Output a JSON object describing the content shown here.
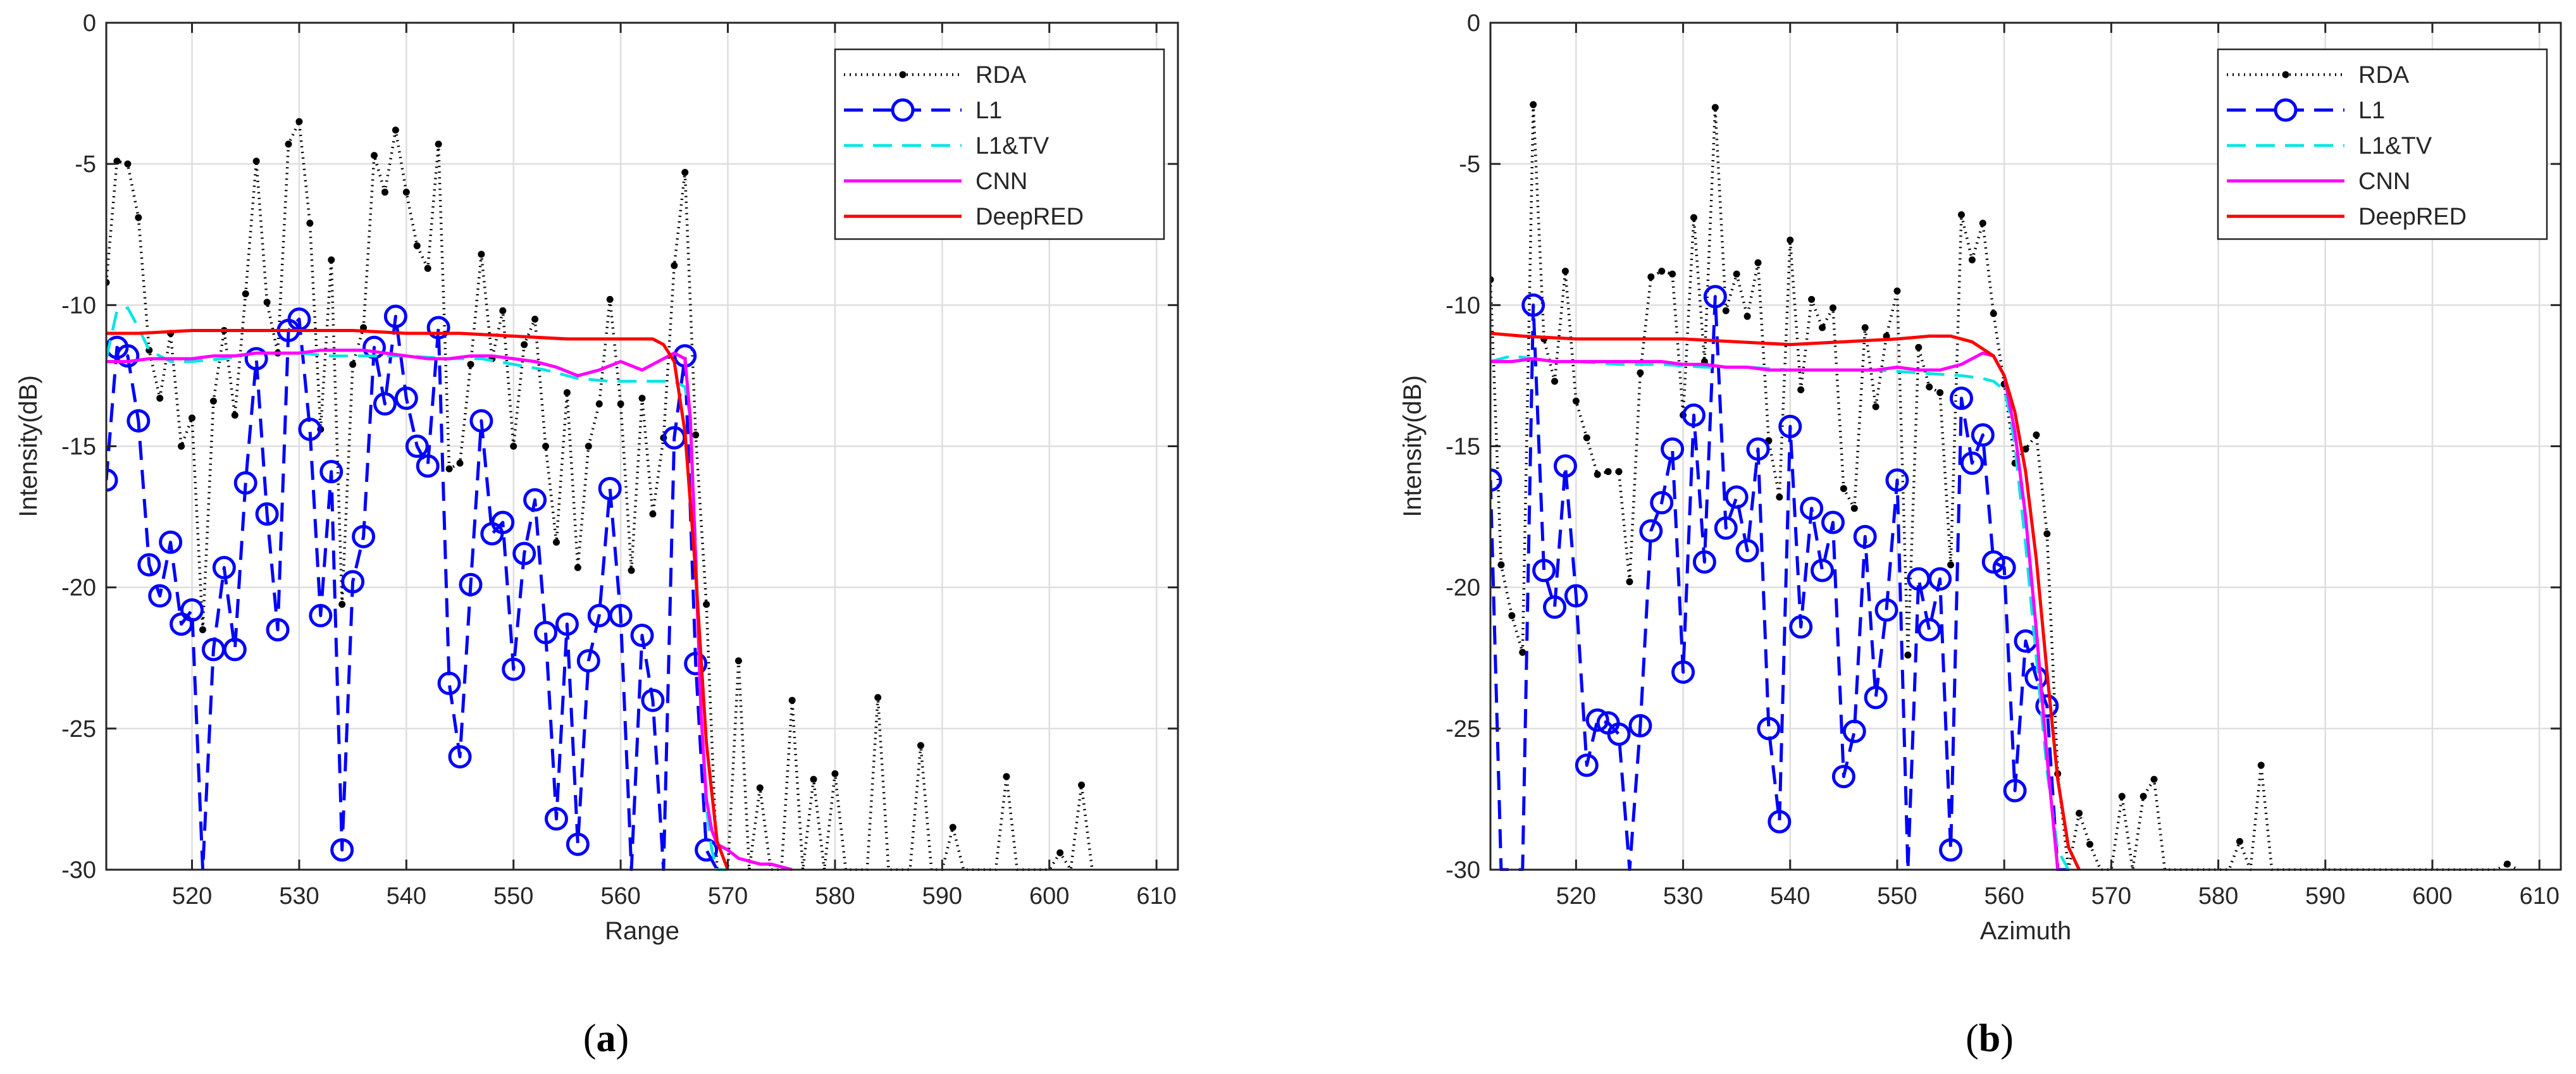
{
  "colors": {
    "RDA": "#000000",
    "L1": "#0000ff",
    "L1&TV": "#00e5e5",
    "CNN": "#ff00ff",
    "DeepRED": "#ff0000",
    "grid": "#dedede",
    "axis": "#262626"
  },
  "chart_data": [
    {
      "type": "line",
      "caption": "(a)",
      "xlabel": "Range",
      "ylabel": "Intensity(dB)",
      "xlim": [
        512,
        612
      ],
      "ylim": [
        -30,
        0
      ],
      "xticks": [
        520,
        530,
        540,
        550,
        560,
        570,
        580,
        590,
        600,
        610
      ],
      "yticks": [
        0,
        -5,
        -10,
        -15,
        -20,
        -25,
        -30
      ],
      "grid": true,
      "legend_position": "top-right",
      "legend": [
        "RDA",
        "L1",
        "L1&TV",
        "CNN",
        "DeepRED"
      ],
      "series": [
        {
          "name": "RDA",
          "x": [
            512,
            513,
            514,
            515,
            516,
            517,
            518,
            519,
            520,
            521,
            522,
            523,
            524,
            525,
            526,
            527,
            528,
            529,
            530,
            531,
            532,
            533,
            534,
            535,
            536,
            537,
            538,
            539,
            540,
            541,
            542,
            543,
            544,
            545,
            546,
            547,
            548,
            549,
            550,
            551,
            552,
            553,
            554,
            555,
            556,
            557,
            558,
            559,
            560,
            561,
            562,
            563,
            564,
            565,
            566,
            567,
            568,
            569,
            570,
            571,
            572,
            573,
            574,
            575,
            576,
            577,
            578,
            579,
            580,
            581,
            582,
            583,
            584,
            585,
            586,
            587,
            588,
            589,
            590,
            591,
            592,
            593,
            594,
            595,
            596,
            597,
            598,
            599,
            600,
            601,
            602,
            603,
            604
          ],
          "y": [
            -9.2,
            -4.9,
            -5.0,
            -6.9,
            -11.6,
            -13.3,
            -11.0,
            -15.0,
            -14.0,
            -21.5,
            -13.4,
            -10.9,
            -13.9,
            -9.6,
            -4.9,
            -9.9,
            -11.7,
            -4.3,
            -3.5,
            -7.1,
            -14.4,
            -8.4,
            -20.6,
            -12.1,
            -10.8,
            -4.7,
            -6.0,
            -3.8,
            -6.0,
            -7.9,
            -8.7,
            -4.3,
            -15.8,
            -15.6,
            -12.1,
            -8.2,
            -11.9,
            -10.2,
            -15.0,
            -11.4,
            -10.5,
            -15.0,
            -18.4,
            -13.1,
            -19.3,
            -15.0,
            -13.5,
            -9.8,
            -13.5,
            -19.4,
            -13.3,
            -17.4,
            -14.7,
            -8.6,
            -5.3,
            -14.6,
            -20.6,
            -30,
            -30,
            -22.6,
            -30,
            -27.1,
            -30,
            -30,
            -24.0,
            -30,
            -26.8,
            -30,
            -26.6,
            -30,
            -30,
            -30,
            -23.9,
            -30,
            -30,
            -30,
            -25.6,
            -30,
            -30,
            -28.5,
            -30,
            -30,
            -30,
            -30,
            -26.7,
            -30,
            -30,
            -30,
            -30,
            -29.4,
            -30,
            -27.0,
            -30
          ]
        },
        {
          "name": "L1",
          "x": [
            512,
            513,
            514,
            515,
            516,
            517,
            518,
            519,
            520,
            521,
            522,
            523,
            524,
            525,
            526,
            527,
            528,
            529,
            530,
            531,
            532,
            533,
            534,
            535,
            536,
            537,
            538,
            539,
            540,
            541,
            542,
            543,
            544,
            545,
            546,
            547,
            548,
            549,
            550,
            551,
            552,
            553,
            554,
            555,
            556,
            557,
            558,
            559,
            560,
            561,
            562,
            563,
            564,
            565,
            566,
            567,
            568,
            569
          ],
          "y": [
            -16.2,
            -11.5,
            -11.8,
            -14.1,
            -19.2,
            -20.3,
            -18.4,
            -21.3,
            -20.8,
            -30,
            -22.2,
            -19.3,
            -22.2,
            -16.3,
            -11.9,
            -17.4,
            -21.5,
            -10.9,
            -10.5,
            -14.4,
            -21.0,
            -15.9,
            -29.3,
            -19.8,
            -18.2,
            -11.5,
            -13.5,
            -10.4,
            -13.3,
            -15.0,
            -15.7,
            -10.8,
            -23.4,
            -26.0,
            -19.9,
            -14.1,
            -18.1,
            -17.7,
            -22.9,
            -18.8,
            -16.9,
            -21.6,
            -28.2,
            -21.3,
            -29.1,
            -22.6,
            -21.0,
            -16.5,
            -21.0,
            -30,
            -21.7,
            -24.0,
            -30,
            -14.7,
            -11.8,
            -22.7,
            -29.3,
            -30
          ]
        },
        {
          "name": "L1&TV",
          "x": [
            512,
            513,
            514,
            515,
            516,
            518,
            520,
            523,
            526,
            530,
            533,
            536,
            540,
            544,
            547,
            550,
            553,
            556,
            559,
            562,
            564,
            565,
            566,
            566.5,
            567,
            567.5,
            568,
            568.5,
            569,
            570
          ],
          "y": [
            -11.9,
            -10.2,
            -10.1,
            -10.8,
            -11.6,
            -12.0,
            -12.0,
            -11.9,
            -11.7,
            -11.7,
            -11.8,
            -11.8,
            -11.8,
            -11.9,
            -11.9,
            -12.1,
            -12.3,
            -12.6,
            -12.7,
            -12.7,
            -12.7,
            -12.7,
            -12.9,
            -14.0,
            -18.5,
            -24.5,
            -27.8,
            -29.3,
            -30,
            -30
          ]
        },
        {
          "name": "CNN",
          "x": [
            512,
            514,
            516,
            518,
            520,
            522,
            524,
            526,
            528,
            530,
            532,
            534,
            536,
            538,
            540,
            542,
            544,
            546,
            548,
            550,
            552,
            554,
            556,
            558,
            560,
            562,
            564,
            565,
            566,
            566.5,
            567,
            567.5,
            568,
            568.5,
            569,
            570,
            571,
            572,
            573,
            574,
            575,
            576
          ],
          "y": [
            -12.0,
            -12.0,
            -11.9,
            -11.9,
            -11.9,
            -11.8,
            -11.8,
            -11.7,
            -11.7,
            -11.7,
            -11.6,
            -11.6,
            -11.6,
            -11.7,
            -11.8,
            -11.9,
            -11.9,
            -11.8,
            -11.8,
            -11.9,
            -12.0,
            -12.2,
            -12.5,
            -12.3,
            -12.0,
            -12.3,
            -11.9,
            -11.7,
            -11.9,
            -14.0,
            -19.0,
            -24.5,
            -27.5,
            -28.6,
            -29.1,
            -29.3,
            -29.6,
            -29.7,
            -29.8,
            -29.8,
            -29.9,
            -30
          ]
        },
        {
          "name": "DeepRED",
          "x": [
            512,
            515,
            520,
            525,
            530,
            535,
            540,
            545,
            550,
            555,
            560,
            563,
            564,
            565,
            566,
            567,
            568,
            569,
            570
          ],
          "y": [
            -11.0,
            -11.0,
            -10.9,
            -10.9,
            -10.9,
            -10.9,
            -11.0,
            -11.0,
            -11.1,
            -11.2,
            -11.2,
            -11.2,
            -11.4,
            -12.0,
            -14.5,
            -19.5,
            -25.5,
            -29.0,
            -30
          ]
        }
      ]
    },
    {
      "type": "line",
      "caption": "(b)",
      "xlabel": "Azimuth",
      "ylabel": "Intensity(dB)",
      "xlim": [
        512,
        612
      ],
      "ylim": [
        -30,
        0
      ],
      "xticks": [
        520,
        530,
        540,
        550,
        560,
        570,
        580,
        590,
        600,
        610
      ],
      "yticks": [
        0,
        -5,
        -10,
        -15,
        -20,
        -25,
        -30
      ],
      "grid": true,
      "legend_position": "top-right",
      "legend": [
        "RDA",
        "L1",
        "L1&TV",
        "CNN",
        "DeepRED"
      ],
      "series": [
        {
          "name": "RDA",
          "x": [
            512,
            513,
            514,
            515,
            516,
            517,
            518,
            519,
            520,
            521,
            522,
            523,
            524,
            525,
            526,
            527,
            528,
            529,
            530,
            531,
            532,
            533,
            534,
            535,
            536,
            537,
            538,
            539,
            540,
            541,
            542,
            543,
            544,
            545,
            546,
            547,
            548,
            549,
            550,
            551,
            552,
            553,
            554,
            555,
            556,
            557,
            558,
            559,
            560,
            561,
            562,
            563,
            564,
            565,
            566,
            567,
            568,
            569,
            570,
            571,
            572,
            573,
            574,
            575,
            576,
            577,
            578,
            579,
            580,
            581,
            582,
            583,
            584,
            585,
            586,
            587,
            588,
            589,
            590,
            591,
            592,
            593,
            594,
            595,
            596,
            597,
            598,
            599,
            600,
            601,
            602,
            603,
            604,
            605,
            606,
            607,
            608
          ],
          "y": [
            -9.1,
            -19.2,
            -21.0,
            -22.3,
            -2.9,
            -11.2,
            -12.7,
            -8.8,
            -13.4,
            -14.7,
            -16.0,
            -15.9,
            -15.9,
            -19.8,
            -12.4,
            -9.0,
            -8.8,
            -8.9,
            -13.9,
            -6.9,
            -12.0,
            -3.0,
            -10.2,
            -8.9,
            -10.4,
            -8.5,
            -14.8,
            -16.8,
            -7.7,
            -13.0,
            -9.8,
            -10.8,
            -10.1,
            -16.5,
            -17.2,
            -10.8,
            -13.6,
            -11.1,
            -9.5,
            -22.4,
            -11.5,
            -12.9,
            -13.1,
            -19.2,
            -6.8,
            -8.4,
            -7.1,
            -10.3,
            -12.8,
            -15.6,
            -15.1,
            -14.6,
            -18.1,
            -26.6,
            -30,
            -28.0,
            -29.1,
            -30,
            -30,
            -27.4,
            -30,
            -27.4,
            -26.8,
            -30,
            -30,
            -30,
            -30,
            -30,
            -30,
            -30,
            -29.0,
            -30,
            -26.3,
            -30,
            -30,
            -30,
            -30,
            -30,
            -30,
            -30,
            -30,
            -30,
            -30,
            -30,
            -30,
            -30,
            -30,
            -30,
            -30,
            -30,
            -30,
            -30,
            -30,
            -30,
            -30,
            -29.8,
            -30
          ]
        },
        {
          "name": "L1",
          "x": [
            512,
            513,
            514,
            515,
            516,
            517,
            518,
            519,
            520,
            521,
            522,
            523,
            524,
            525,
            526,
            527,
            528,
            529,
            530,
            531,
            532,
            533,
            534,
            535,
            536,
            537,
            538,
            539,
            540,
            541,
            542,
            543,
            544,
            545,
            546,
            547,
            548,
            549,
            550,
            551,
            552,
            553,
            554,
            555,
            556,
            557,
            558,
            559,
            560,
            561,
            562,
            563,
            564,
            565,
            566
          ],
          "y": [
            -16.2,
            -30,
            -30,
            -30,
            -10.0,
            -19.4,
            -20.7,
            -15.7,
            -20.3,
            -26.3,
            -24.7,
            -24.8,
            -25.2,
            -30,
            -24.9,
            -18.0,
            -17.0,
            -15.1,
            -23.0,
            -13.9,
            -19.1,
            -9.7,
            -17.9,
            -16.8,
            -18.7,
            -15.1,
            -25.0,
            -28.3,
            -14.3,
            -21.4,
            -17.2,
            -19.4,
            -17.7,
            -26.7,
            -25.1,
            -18.2,
            -23.9,
            -20.8,
            -16.2,
            -30,
            -19.7,
            -21.5,
            -19.7,
            -29.3,
            -13.3,
            -15.6,
            -14.6,
            -19.1,
            -19.3,
            -27.2,
            -21.9,
            -23.2,
            -24.2,
            -30,
            -30
          ]
        },
        {
          "name": "L1&TV",
          "x": [
            512,
            513,
            514,
            516,
            518,
            520,
            524,
            528,
            532,
            536,
            540,
            544,
            548,
            552,
            556,
            558,
            559,
            560,
            560.5,
            561,
            562,
            563,
            564,
            565,
            566
          ],
          "y": [
            -12.0,
            -11.9,
            -11.8,
            -11.9,
            -12.0,
            -12.0,
            -12.1,
            -12.1,
            -12.2,
            -12.2,
            -12.3,
            -12.3,
            -12.3,
            -12.4,
            -12.5,
            -12.6,
            -12.7,
            -13.0,
            -13.8,
            -15.0,
            -18.5,
            -22.5,
            -26.5,
            -29.3,
            -30
          ]
        },
        {
          "name": "CNN",
          "x": [
            512,
            514,
            516,
            518,
            520,
            522,
            524,
            526,
            528,
            530,
            532,
            534,
            536,
            538,
            540,
            542,
            544,
            546,
            548,
            550,
            552,
            554,
            556,
            558,
            559,
            560,
            561,
            562,
            563,
            564,
            565
          ],
          "y": [
            -12.0,
            -12.0,
            -11.9,
            -12.0,
            -12.0,
            -12.0,
            -12.0,
            -12.0,
            -12.0,
            -12.1,
            -12.1,
            -12.2,
            -12.2,
            -12.3,
            -12.3,
            -12.3,
            -12.3,
            -12.3,
            -12.3,
            -12.2,
            -12.3,
            -12.3,
            -12.1,
            -11.7,
            -11.8,
            -12.5,
            -14.5,
            -17.5,
            -21.5,
            -26.0,
            -30
          ]
        },
        {
          "name": "DeepRED",
          "x": [
            512,
            515,
            520,
            525,
            530,
            535,
            540,
            545,
            550,
            553,
            555,
            557,
            559,
            560,
            561,
            562,
            563,
            564,
            565,
            566,
            567
          ],
          "y": [
            -11.0,
            -11.1,
            -11.2,
            -11.2,
            -11.2,
            -11.3,
            -11.4,
            -11.3,
            -11.2,
            -11.1,
            -11.1,
            -11.3,
            -11.8,
            -12.5,
            -13.8,
            -15.9,
            -19.0,
            -23.0,
            -26.8,
            -29.2,
            -30
          ]
        }
      ]
    }
  ]
}
